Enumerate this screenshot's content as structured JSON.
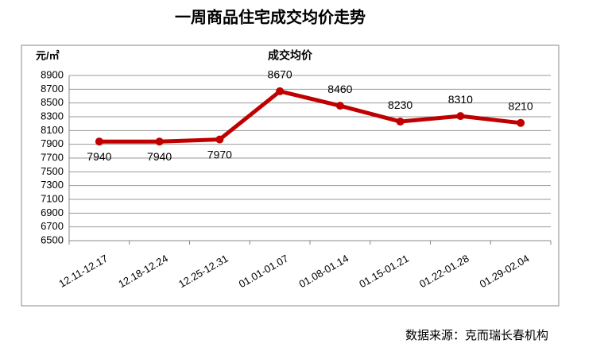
{
  "chart_data": {
    "type": "line",
    "title": "一周商品住宅成交均价走势",
    "subtitle": "成交均价",
    "y_label": "元/㎡",
    "source": "数据来源：克而瑞长春机构",
    "categories": [
      "12.11-12.17",
      "12.18-12.24",
      "12.25-12.31",
      "01.01-01.07",
      "01.08-01.14",
      "01.15-01.21",
      "01.22-01.28",
      "01.29-02.04"
    ],
    "series": [
      {
        "name": "成交均价",
        "color": "#c00000",
        "values": [
          7940,
          7940,
          7970,
          8670,
          8460,
          8230,
          8310,
          8210
        ]
      }
    ],
    "ylim": [
      6500,
      8900
    ],
    "yticks": [
      6500,
      6700,
      6900,
      7100,
      7300,
      7500,
      7700,
      7900,
      8100,
      8300,
      8500,
      8700,
      8900
    ],
    "grid": true
  }
}
